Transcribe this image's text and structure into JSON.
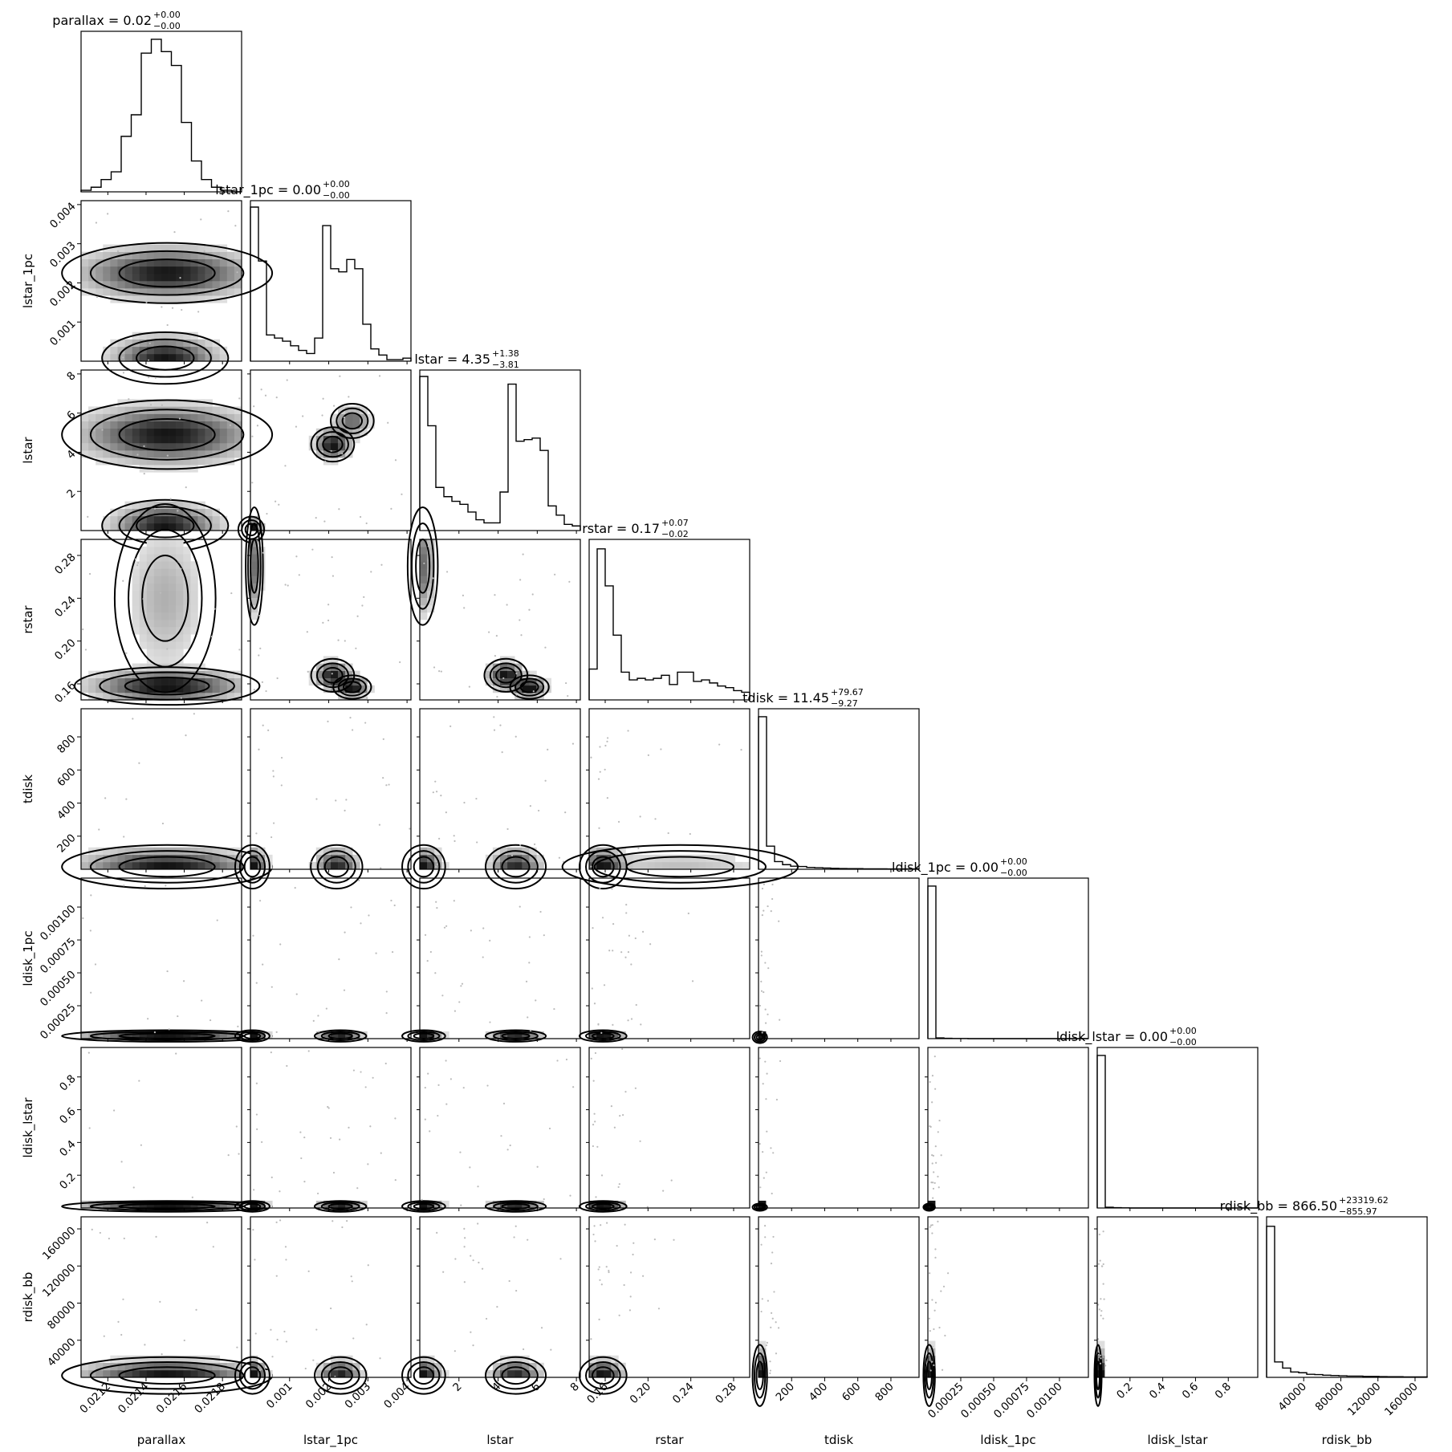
{
  "chart_data": {
    "type": "corner",
    "parameters": [
      "parallax",
      "lstar_1pc",
      "lstar",
      "rstar",
      "tdisk",
      "ldisk_1pc",
      "ldisk_lstar",
      "rdisk_bb"
    ],
    "titles": [
      {
        "param": "parallax",
        "label": "parallax",
        "value": "0.02",
        "plus": "+0.00",
        "minus": "−0.00"
      },
      {
        "param": "lstar_1pc",
        "label": "lstar_1pc",
        "value": "0.00",
        "plus": "+0.00",
        "minus": "−0.00"
      },
      {
        "param": "lstar",
        "label": "lstar",
        "value": "4.35",
        "plus": "+1.38",
        "minus": "−3.81"
      },
      {
        "param": "rstar",
        "label": "rstar",
        "value": "0.17",
        "plus": "+0.07",
        "minus": "−0.02"
      },
      {
        "param": "tdisk",
        "label": "tdisk",
        "value": "11.45",
        "plus": "+79.67",
        "minus": "−9.27"
      },
      {
        "param": "ldisk_1pc",
        "label": "ldisk_1pc",
        "value": "0.00",
        "plus": "+0.00",
        "minus": "−0.00"
      },
      {
        "param": "ldisk_lstar",
        "label": "ldisk_lstar",
        "value": "0.00",
        "plus": "+0.00",
        "minus": "−0.00"
      },
      {
        "param": "rdisk_bb",
        "label": "rdisk_bb",
        "value": "866.50",
        "plus": "+23319.62",
        "minus": "−855.97"
      }
    ],
    "axes": [
      {
        "name": "parallax",
        "range": [
          0.02106,
          0.0219
        ],
        "ticks": [
          0.0212,
          0.0214,
          0.0216,
          0.0218
        ],
        "tick_labels": [
          "0.0212",
          "0.0214",
          "0.0216",
          "0.0218"
        ]
      },
      {
        "name": "lstar_1pc",
        "range": [
          0.0,
          0.0041
        ],
        "ticks": [
          0.001,
          0.002,
          0.003,
          0.004
        ],
        "tick_labels": [
          "0.001",
          "0.002",
          "0.003",
          "0.004"
        ]
      },
      {
        "name": "lstar",
        "range": [
          0.0,
          8.2
        ],
        "ticks": [
          2,
          4,
          6,
          8
        ],
        "tick_labels": [
          "2",
          "4",
          "6",
          "8"
        ]
      },
      {
        "name": "rstar",
        "range": [
          0.145,
          0.295
        ],
        "ticks": [
          0.16,
          0.2,
          0.24,
          0.28
        ],
        "tick_labels": [
          "0.16",
          "0.20",
          "0.24",
          "0.28"
        ]
      },
      {
        "name": "tdisk",
        "range": [
          0,
          970
        ],
        "ticks": [
          200,
          400,
          600,
          800
        ],
        "tick_labels": [
          "200",
          "400",
          "600",
          "800"
        ]
      },
      {
        "name": "ldisk_1pc",
        "range": [
          0,
          0.00122
        ],
        "ticks": [
          0.00025,
          0.0005,
          0.00075,
          0.001
        ],
        "tick_labels": [
          "0.00025",
          "0.00050",
          "0.00075",
          "0.00100"
        ]
      },
      {
        "name": "ldisk_lstar",
        "range": [
          0,
          0.98
        ],
        "ticks": [
          0.2,
          0.4,
          0.6,
          0.8
        ],
        "tick_labels": [
          "0.2",
          "0.4",
          "0.6",
          "0.8"
        ]
      },
      {
        "name": "rdisk_bb",
        "range": [
          0,
          173000
        ],
        "ticks": [
          40000,
          80000,
          120000,
          160000
        ],
        "tick_labels": [
          "40000",
          "80000",
          "120000",
          "160000"
        ]
      }
    ],
    "histograms": [
      [
        0.01,
        0.03,
        0.08,
        0.13,
        0.36,
        0.5,
        0.9,
        0.99,
        0.91,
        0.82,
        0.45,
        0.2,
        0.08,
        0.03,
        0.01,
        0.0
      ],
      [
        1.0,
        0.65,
        0.17,
        0.15,
        0.13,
        0.1,
        0.07,
        0.05,
        0.15,
        0.88,
        0.6,
        0.58,
        0.66,
        0.6,
        0.24,
        0.08,
        0.04,
        0.01,
        0.01,
        0.02
      ],
      [
        1.0,
        0.68,
        0.28,
        0.22,
        0.19,
        0.17,
        0.12,
        0.07,
        0.05,
        0.05,
        0.25,
        0.95,
        0.58,
        0.59,
        0.6,
        0.52,
        0.16,
        0.1,
        0.04,
        0.03
      ],
      [
        0.2,
        0.98,
        0.74,
        0.42,
        0.18,
        0.13,
        0.14,
        0.13,
        0.14,
        0.16,
        0.1,
        0.18,
        0.18,
        0.12,
        0.13,
        0.11,
        0.09,
        0.08,
        0.06,
        0.05
      ],
      [
        0.99,
        0.15,
        0.05,
        0.03,
        0.02,
        0.018,
        0.012,
        0.01,
        0.008,
        0.006,
        0.005,
        0.004,
        0.004,
        0.003,
        0.003,
        0.003,
        0.002,
        0.002,
        0.002,
        0.002
      ],
      [
        0.99,
        0.005,
        0.002,
        0.001,
        0.001,
        0,
        0,
        0,
        0,
        0,
        0,
        0,
        0,
        0,
        0,
        0,
        0,
        0,
        0,
        0
      ],
      [
        0.99,
        0.005,
        0.002,
        0.001,
        0,
        0,
        0,
        0,
        0,
        0,
        0,
        0,
        0,
        0,
        0,
        0,
        0,
        0,
        0,
        0
      ],
      [
        0.98,
        0.1,
        0.06,
        0.035,
        0.03,
        0.02,
        0.018,
        0.014,
        0.012,
        0.01,
        0.008,
        0.008,
        0.006,
        0.006,
        0.005,
        0.004,
        0.004,
        0.003,
        0.003,
        0.003
      ]
    ],
    "joint_modes": [
      {
        "row": 1,
        "col": 0,
        "modes": [
          {
            "x": 0.02151,
            "y": 0.00225,
            "sx": 0.00025,
            "sy": 0.00035,
            "w": 1.0
          },
          {
            "x": 0.0215,
            "y": 8e-05,
            "sx": 0.00015,
            "sy": 0.0003,
            "w": 1.0
          }
        ]
      },
      {
        "row": 2,
        "col": 0,
        "modes": [
          {
            "x": 0.02151,
            "y": 4.9,
            "sx": 0.00025,
            "sy": 0.8,
            "w": 1.0
          },
          {
            "x": 0.0215,
            "y": 0.25,
            "sx": 0.00015,
            "sy": 0.6,
            "w": 1.0
          }
        ]
      },
      {
        "row": 2,
        "col": 1,
        "modes": [
          {
            "x": 2e-05,
            "y": 0.05,
            "sx": 0.00015,
            "sy": 0.3,
            "w": 1.2
          },
          {
            "x": 0.0021,
            "y": 4.4,
            "sx": 0.00025,
            "sy": 0.4,
            "w": 1.0
          },
          {
            "x": 0.0026,
            "y": 5.6,
            "sx": 0.00025,
            "sy": 0.4,
            "w": 0.6
          }
        ]
      },
      {
        "row": 3,
        "col": 0,
        "modes": [
          {
            "x": 0.02151,
            "y": 0.158,
            "sx": 0.00022,
            "sy": 0.008,
            "w": 1.0
          },
          {
            "x": 0.0215,
            "y": 0.24,
            "sx": 0.00012,
            "sy": 0.04,
            "w": 0.25
          }
        ]
      },
      {
        "row": 3,
        "col": 1,
        "modes": [
          {
            "x": 0.0001,
            "y": 0.27,
            "sx": 0.0001,
            "sy": 0.025,
            "w": 0.5
          },
          {
            "x": 0.0021,
            "y": 0.168,
            "sx": 0.00025,
            "sy": 0.007,
            "w": 0.9
          },
          {
            "x": 0.0026,
            "y": 0.157,
            "sx": 0.00022,
            "sy": 0.005,
            "w": 1.0
          }
        ]
      },
      {
        "row": 3,
        "col": 2,
        "modes": [
          {
            "x": 0.15,
            "y": 0.27,
            "sx": 0.35,
            "sy": 0.025,
            "w": 0.5
          },
          {
            "x": 4.4,
            "y": 0.168,
            "sx": 0.5,
            "sy": 0.007,
            "w": 0.9
          },
          {
            "x": 5.6,
            "y": 0.157,
            "sx": 0.45,
            "sy": 0.005,
            "w": 1.0
          }
        ]
      },
      {
        "row": 4,
        "col": 0,
        "modes": [
          {
            "x": 0.02151,
            "y": 15,
            "sx": 0.00025,
            "sy": 60,
            "w": 1.0
          }
        ]
      },
      {
        "row": 4,
        "col": 1,
        "modes": [
          {
            "x": 5e-05,
            "y": 15,
            "sx": 0.0002,
            "sy": 60,
            "w": 1.0
          },
          {
            "x": 0.0022,
            "y": 15,
            "sx": 0.0003,
            "sy": 60,
            "w": 0.9
          }
        ]
      },
      {
        "row": 4,
        "col": 2,
        "modes": [
          {
            "x": 0.2,
            "y": 15,
            "sx": 0.5,
            "sy": 60,
            "w": 1.0
          },
          {
            "x": 4.9,
            "y": 15,
            "sx": 0.7,
            "sy": 60,
            "w": 0.9
          }
        ]
      },
      {
        "row": 4,
        "col": 3,
        "modes": [
          {
            "x": 0.158,
            "y": 15,
            "sx": 0.01,
            "sy": 60,
            "w": 1.0
          },
          {
            "x": 0.23,
            "y": 15,
            "sx": 0.05,
            "sy": 60,
            "w": 0.2
          }
        ]
      },
      {
        "row": 5,
        "col": 0,
        "modes": [
          {
            "x": 0.02151,
            "y": 2e-05,
            "sx": 0.00025,
            "sy": 2e-05,
            "w": 1.0
          }
        ]
      },
      {
        "row": 5,
        "col": 1,
        "modes": [
          {
            "x": 5e-05,
            "y": 2e-05,
            "sx": 0.0002,
            "sy": 2e-05,
            "w": 1.0
          },
          {
            "x": 0.0023,
            "y": 2e-05,
            "sx": 0.0003,
            "sy": 2e-05,
            "w": 0.9
          }
        ]
      },
      {
        "row": 5,
        "col": 2,
        "modes": [
          {
            "x": 0.2,
            "y": 2e-05,
            "sx": 0.5,
            "sy": 2e-05,
            "w": 1.0
          },
          {
            "x": 4.9,
            "y": 2e-05,
            "sx": 0.7,
            "sy": 2e-05,
            "w": 0.9
          }
        ]
      },
      {
        "row": 5,
        "col": 3,
        "modes": [
          {
            "x": 0.158,
            "y": 2e-05,
            "sx": 0.01,
            "sy": 2e-05,
            "w": 1.0
          }
        ]
      },
      {
        "row": 5,
        "col": 4,
        "modes": [
          {
            "x": 8,
            "y": 1e-05,
            "sx": 20,
            "sy": 2e-05,
            "w": 1.0
          }
        ]
      },
      {
        "row": 6,
        "col": 0,
        "modes": [
          {
            "x": 0.02151,
            "y": 0.01,
            "sx": 0.00025,
            "sy": 0.015,
            "w": 1.0
          }
        ]
      },
      {
        "row": 6,
        "col": 1,
        "modes": [
          {
            "x": 5e-05,
            "y": 0.01,
            "sx": 0.0002,
            "sy": 0.015,
            "w": 1.0
          },
          {
            "x": 0.0023,
            "y": 0.01,
            "sx": 0.0003,
            "sy": 0.015,
            "w": 0.9
          }
        ]
      },
      {
        "row": 6,
        "col": 2,
        "modes": [
          {
            "x": 0.2,
            "y": 0.01,
            "sx": 0.5,
            "sy": 0.015,
            "w": 1.0
          },
          {
            "x": 4.9,
            "y": 0.01,
            "sx": 0.7,
            "sy": 0.015,
            "w": 0.9
          }
        ]
      },
      {
        "row": 6,
        "col": 3,
        "modes": [
          {
            "x": 0.158,
            "y": 0.01,
            "sx": 0.01,
            "sy": 0.015,
            "w": 1.0
          }
        ]
      },
      {
        "row": 6,
        "col": 4,
        "modes": [
          {
            "x": 8,
            "y": 0.005,
            "sx": 20,
            "sy": 0.01,
            "w": 1.0
          }
        ]
      },
      {
        "row": 6,
        "col": 5,
        "modes": [
          {
            "x": 1e-05,
            "y": 0.005,
            "sx": 2e-05,
            "sy": 0.01,
            "w": 1.0
          }
        ]
      },
      {
        "row": 7,
        "col": 0,
        "modes": [
          {
            "x": 0.02151,
            "y": 2000,
            "sx": 0.00025,
            "sy": 9000,
            "w": 1.0
          }
        ]
      },
      {
        "row": 7,
        "col": 1,
        "modes": [
          {
            "x": 5e-05,
            "y": 2000,
            "sx": 0.0002,
            "sy": 9000,
            "w": 1.0
          },
          {
            "x": 0.0023,
            "y": 2000,
            "sx": 0.0003,
            "sy": 9000,
            "w": 0.9
          }
        ]
      },
      {
        "row": 7,
        "col": 2,
        "modes": [
          {
            "x": 0.2,
            "y": 2000,
            "sx": 0.5,
            "sy": 9000,
            "w": 1.0
          },
          {
            "x": 4.9,
            "y": 2000,
            "sx": 0.7,
            "sy": 9000,
            "w": 0.9
          }
        ]
      },
      {
        "row": 7,
        "col": 3,
        "modes": [
          {
            "x": 0.158,
            "y": 2000,
            "sx": 0.01,
            "sy": 9000,
            "w": 1.0
          }
        ]
      },
      {
        "row": 7,
        "col": 4,
        "modes": [
          {
            "x": 8,
            "y": 2000,
            "sx": 20,
            "sy": 15000,
            "w": 1.0
          }
        ]
      },
      {
        "row": 7,
        "col": 5,
        "modes": [
          {
            "x": 1e-05,
            "y": 2000,
            "sx": 2e-05,
            "sy": 15000,
            "w": 1.0
          }
        ]
      },
      {
        "row": 7,
        "col": 6,
        "modes": [
          {
            "x": 0.005,
            "y": 2000,
            "sx": 0.01,
            "sy": 15000,
            "w": 1.0
          }
        ]
      }
    ],
    "contour_color": "#000000",
    "shade_color": "#000000",
    "scatter_color": "#bbbbbb"
  }
}
